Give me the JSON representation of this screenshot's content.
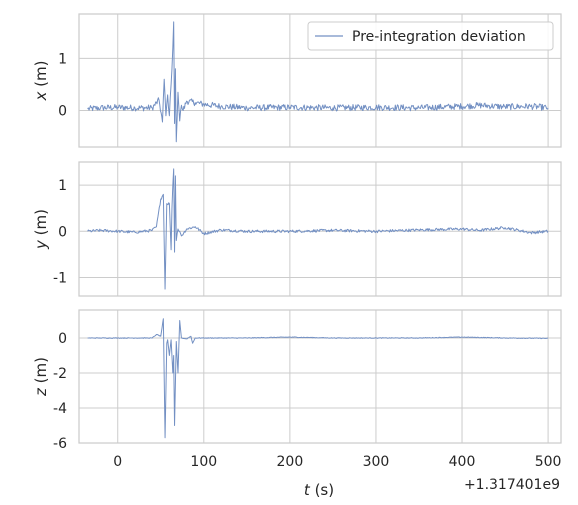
{
  "chart_data": {
    "type": "line",
    "x_offset_label": "+1.317401e9",
    "xlabel": "$t$ (s)",
    "xlabel_parts": {
      "var": "t",
      "unit": " (s)"
    },
    "xlim": [
      -45,
      515
    ],
    "xticks": [
      0,
      100,
      200,
      300,
      400,
      500
    ],
    "grid": true,
    "legend": {
      "entries": [
        "Pre-integration deviation"
      ],
      "placement": "top-right",
      "in_panel": 0
    },
    "series_color": "#7390c3",
    "panels": [
      {
        "ylabel_parts": {
          "var": "x",
          "unit": " (m)"
        },
        "ylim": [
          -0.7,
          1.85
        ],
        "yticks": [
          0,
          1
        ],
        "series": [
          {
            "name": "Pre-integration deviation",
            "x": [
              -35,
              -20,
              0,
              20,
              40,
              48,
              52,
              54,
              56,
              58,
              60,
              62,
              64,
              65,
              66,
              67,
              68,
              70,
              72,
              74,
              76,
              80,
              90,
              100,
              120,
              150,
              200,
              250,
              300,
              350,
              400,
              420,
              450,
              480,
              500
            ],
            "y": [
              0.03,
              0.05,
              0.06,
              0.05,
              0.05,
              0.2,
              -0.22,
              0.6,
              -0.1,
              0.3,
              -0.1,
              0.5,
              1.2,
              1.7,
              -0.25,
              0.8,
              -0.6,
              0.35,
              -0.2,
              0.1,
              0.0,
              0.18,
              0.15,
              0.12,
              0.08,
              0.05,
              0.06,
              0.05,
              0.06,
              0.05,
              0.08,
              0.1,
              0.07,
              0.08,
              0.05
            ],
            "noise": 0.06
          }
        ]
      },
      {
        "ylabel_parts": {
          "var": "y",
          "unit": " (m)"
        },
        "ylim": [
          -1.4,
          1.5
        ],
        "yticks": [
          -1,
          0,
          1
        ],
        "series": [
          {
            "name": "Pre-integration deviation",
            "x": [
              -35,
              -20,
              0,
              20,
              40,
              45,
              50,
              53,
              55,
              57,
              60,
              62,
              63,
              64,
              65,
              66,
              67,
              68,
              70,
              72,
              74,
              80,
              90,
              100,
              120,
              150,
              200,
              250,
              300,
              350,
              400,
              420,
              450,
              480,
              500
            ],
            "y": [
              0.0,
              0.02,
              0.0,
              -0.02,
              0.02,
              0.1,
              0.7,
              0.8,
              -1.25,
              0.6,
              0.6,
              -0.4,
              0.5,
              1.0,
              1.35,
              -0.45,
              1.2,
              -0.2,
              0.05,
              0.0,
              -0.1,
              0.05,
              0.1,
              -0.05,
              0.03,
              0.0,
              0.0,
              0.02,
              0.0,
              0.03,
              0.05,
              0.02,
              0.08,
              -0.03,
              0.0
            ],
            "noise": 0.03
          }
        ]
      },
      {
        "ylabel_parts": {
          "var": "z",
          "unit": " (m)"
        },
        "ylim": [
          -6.0,
          1.6
        ],
        "yticks": [
          -6,
          -4,
          -2,
          0
        ],
        "series": [
          {
            "name": "Pre-integration deviation",
            "x": [
              -35,
              -20,
              0,
              20,
              40,
              45,
              50,
              53,
              55,
              57,
              58,
              60,
              62,
              64,
              65,
              66,
              68,
              70,
              72,
              74,
              80,
              85,
              87,
              90,
              100,
              120,
              150,
              200,
              250,
              300,
              350,
              400,
              450,
              500
            ],
            "y": [
              0.0,
              0.0,
              0.0,
              0.0,
              0.0,
              0.2,
              0.1,
              1.1,
              -5.7,
              -0.3,
              -0.1,
              -1.0,
              -0.1,
              -2.0,
              -1.0,
              -5.0,
              -0.2,
              -2.0,
              1.0,
              0.0,
              -0.05,
              0.1,
              -0.3,
              0.0,
              0.0,
              0.0,
              0.0,
              0.05,
              0.0,
              0.0,
              0.0,
              0.05,
              0.0,
              -0.02
            ],
            "noise": 0.02
          }
        ]
      }
    ]
  }
}
